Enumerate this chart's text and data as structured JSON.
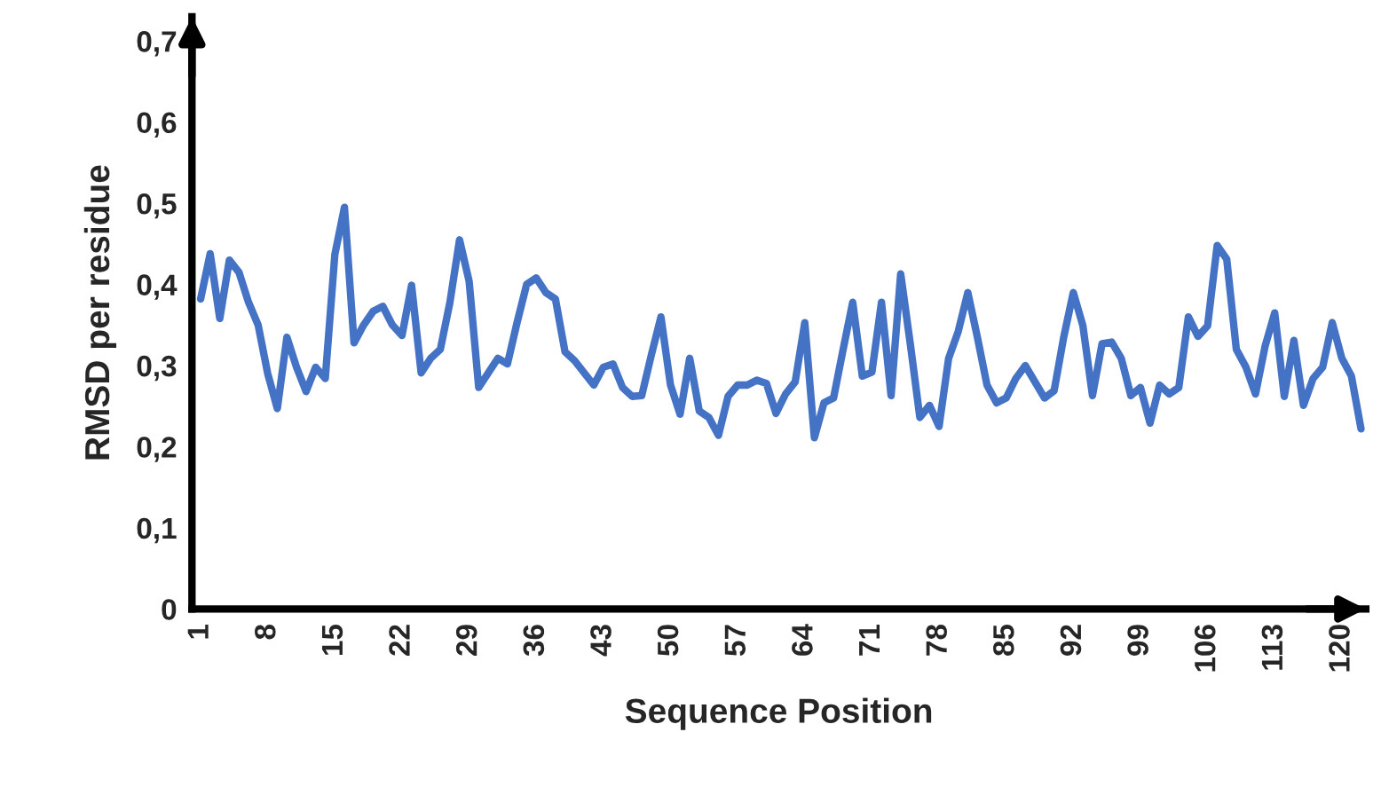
{
  "chart_data": {
    "type": "line",
    "xlabel": "Sequence Position",
    "ylabel": "RMSD per residue",
    "categories": [
      "1",
      null,
      null,
      null,
      null,
      null,
      null,
      "8",
      null,
      null,
      null,
      null,
      null,
      null,
      "15",
      null,
      null,
      null,
      null,
      null,
      null,
      "22",
      null,
      null,
      null,
      null,
      null,
      null,
      "29",
      null,
      null,
      null,
      null,
      null,
      null,
      "36",
      null,
      null,
      null,
      null,
      null,
      null,
      "43",
      null,
      null,
      null,
      null,
      null,
      null,
      "50",
      null,
      null,
      null,
      null,
      null,
      null,
      "57",
      null,
      null,
      null,
      null,
      null,
      null,
      "64",
      null,
      null,
      null,
      null,
      null,
      null,
      "71",
      null,
      null,
      null,
      null,
      null,
      null,
      "78",
      null,
      null,
      null,
      null,
      null,
      null,
      "85",
      null,
      null,
      null,
      null,
      null,
      null,
      "92",
      null,
      null,
      null,
      null,
      null,
      null,
      "99",
      null,
      null,
      null,
      null,
      null,
      null,
      "106",
      null,
      null,
      null,
      null,
      null,
      null,
      "113",
      null,
      null,
      null,
      null,
      null,
      null,
      "120",
      null,
      null
    ],
    "series": [
      {
        "color": "#4472c4",
        "values": [
          0.382,
          0.438,
          0.358,
          0.43,
          0.415,
          0.378,
          0.35,
          0.29,
          0.247,
          0.335,
          0.298,
          0.268,
          0.298,
          0.284,
          0.437,
          0.495,
          0.328,
          0.35,
          0.367,
          0.373,
          0.35,
          0.337,
          0.399,
          0.291,
          0.309,
          0.32,
          0.378,
          0.455,
          0.404,
          0.273,
          0.291,
          0.309,
          0.302,
          0.353,
          0.4,
          0.408,
          0.39,
          0.382,
          0.317,
          0.306,
          0.291,
          0.276,
          0.298,
          0.302,
          0.273,
          0.262,
          0.263,
          0.313,
          0.36,
          0.276,
          0.24,
          0.309,
          0.244,
          0.236,
          0.214,
          0.262,
          0.276,
          0.276,
          0.282,
          0.278,
          0.241,
          0.265,
          0.28,
          0.353,
          0.211,
          0.254,
          0.26,
          0.32,
          0.378,
          0.287,
          0.292,
          0.378,
          0.263,
          0.413,
          0.327,
          0.236,
          0.251,
          0.225,
          0.309,
          0.342,
          0.39,
          0.335,
          0.276,
          0.254,
          0.26,
          0.284,
          0.3,
          0.28,
          0.26,
          0.269,
          0.335,
          0.39,
          0.349,
          0.263,
          0.327,
          0.329,
          0.309,
          0.263,
          0.273,
          0.229,
          0.276,
          0.265,
          0.273,
          0.36,
          0.336,
          0.349,
          0.448,
          0.431,
          0.32,
          0.298,
          0.265,
          0.324,
          0.365,
          0.262,
          0.331,
          0.251,
          0.284,
          0.298,
          0.353,
          0.309,
          0.287,
          0.222
        ]
      }
    ],
    "ylim": [
      0,
      0.73
    ],
    "yticks": [
      0,
      {
        "value": 0.1,
        "label": "0,1"
      },
      {
        "value": 0.2,
        "label": "0,2"
      },
      {
        "value": 0.3,
        "label": "0,3"
      },
      {
        "value": 0.4,
        "label": "0,4"
      },
      {
        "value": 0.5,
        "label": "0,5"
      },
      {
        "value": 0.6,
        "label": "0,6"
      },
      {
        "value": 0.7,
        "label": "0,7"
      }
    ],
    "grid": false,
    "legend": false,
    "marker": "none",
    "line_style": "solid"
  }
}
